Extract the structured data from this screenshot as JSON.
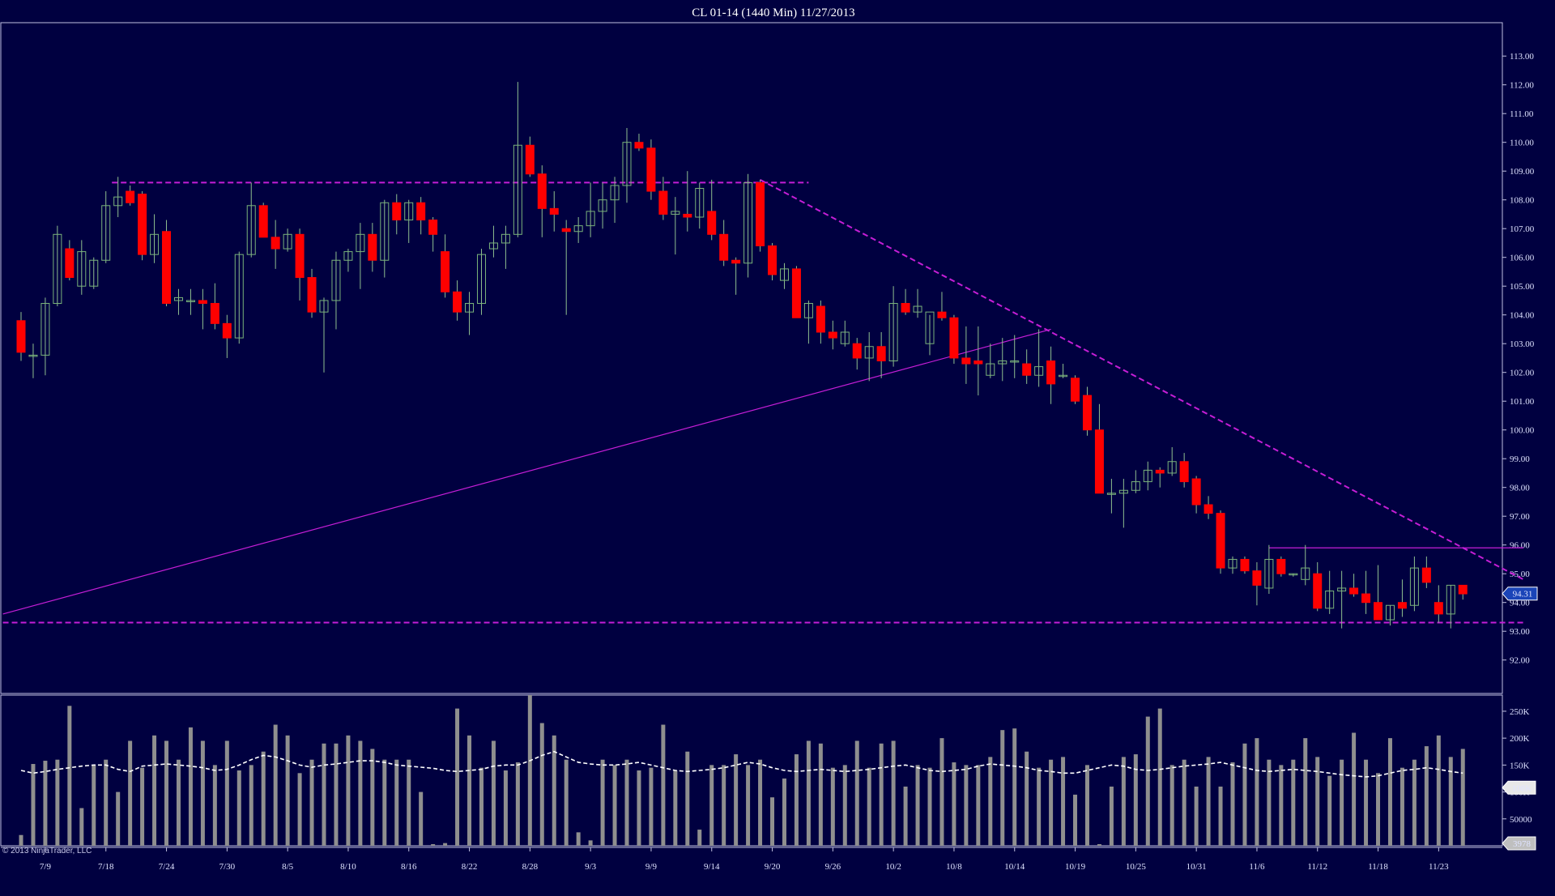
{
  "window": {
    "title": "CL 01-14 (1440 Min)  11/27/2013",
    "copyright": "© 2013 NinjaTrader, LLC"
  },
  "colors": {
    "background": "#000040",
    "up_candle": "#7ab37a",
    "down_candle": "#ff0000",
    "wick": "#8fbf8f",
    "trendline": "#c51ed6",
    "volume_bar": "#8f8f8f",
    "volume_ma": "#ffffff",
    "frame": "#c0c0e0",
    "last_price_marker": "#1a44b8"
  },
  "chart_data": [
    {
      "type": "candlestick",
      "panel": "price",
      "title": "CL 01-14 (1440 Min)  11/27/2013",
      "ylim": [
        91.4,
        113.4
      ],
      "y_ticks": [
        "113.00",
        "112.00",
        "111.00",
        "110.00",
        "109.00",
        "108.00",
        "107.00",
        "106.00",
        "105.00",
        "104.00",
        "103.00",
        "102.00",
        "101.00",
        "100.00",
        "99.00",
        "98.00",
        "97.00",
        "96.00",
        "95.00",
        "94.00",
        "93.00",
        "92.00"
      ],
      "x_tick_labels": [
        {
          "label": "7/9",
          "index": 1
        },
        {
          "label": "7/18",
          "index": 6
        },
        {
          "label": "7/24",
          "index": 11
        },
        {
          "label": "7/30",
          "index": 16
        },
        {
          "label": "8/5",
          "index": 21
        },
        {
          "label": "8/10",
          "index": 26
        },
        {
          "label": "8/16",
          "index": 31
        },
        {
          "label": "8/22",
          "index": 36
        },
        {
          "label": "8/28",
          "index": 41
        },
        {
          "label": "9/3",
          "index": 46
        },
        {
          "label": "9/9",
          "index": 51
        },
        {
          "label": "9/14",
          "index": 56
        },
        {
          "label": "9/20",
          "index": 61
        },
        {
          "label": "9/26",
          "index": 66
        },
        {
          "label": "10/2",
          "index": 71
        },
        {
          "label": "10/8",
          "index": 76
        },
        {
          "label": "10/14",
          "index": 81
        },
        {
          "label": "10/19",
          "index": 86
        },
        {
          "label": "10/25",
          "index": 91
        },
        {
          "label": "10/31",
          "index": 96
        },
        {
          "label": "11/6",
          "index": 101
        },
        {
          "label": "11/12",
          "index": 106
        },
        {
          "label": "11/18",
          "index": 111
        },
        {
          "label": "11/23",
          "index": 116
        }
      ],
      "last_price": "94.31",
      "last_price_value": 94.31,
      "candles": [
        [
          103.8,
          104.1,
          102.4,
          102.7
        ],
        [
          102.6,
          103.0,
          101.8,
          102.6
        ],
        [
          102.6,
          104.6,
          101.9,
          104.4
        ],
        [
          104.4,
          107.1,
          104.3,
          106.8
        ],
        [
          106.3,
          106.6,
          105.2,
          105.3
        ],
        [
          105.0,
          106.6,
          104.7,
          106.2
        ],
        [
          105.0,
          106.0,
          104.9,
          105.9
        ],
        [
          105.9,
          108.3,
          105.8,
          107.8
        ],
        [
          107.8,
          108.8,
          107.4,
          108.1
        ],
        [
          108.3,
          108.5,
          107.8,
          107.9
        ],
        [
          108.2,
          108.3,
          105.9,
          106.1
        ],
        [
          106.1,
          107.5,
          105.8,
          106.8
        ],
        [
          106.9,
          107.3,
          104.3,
          104.4
        ],
        [
          104.5,
          104.9,
          104.0,
          104.6
        ],
        [
          104.5,
          104.9,
          104.0,
          104.5
        ],
        [
          104.5,
          104.9,
          103.5,
          104.4
        ],
        [
          104.4,
          105.1,
          103.5,
          103.7
        ],
        [
          103.7,
          104.0,
          102.5,
          103.2
        ],
        [
          103.2,
          106.2,
          103.0,
          106.1
        ],
        [
          106.1,
          108.6,
          106.0,
          107.8
        ],
        [
          107.8,
          107.9,
          106.7,
          106.7
        ],
        [
          106.7,
          107.3,
          105.6,
          106.3
        ],
        [
          106.3,
          107.0,
          106.2,
          106.8
        ],
        [
          106.8,
          107.0,
          104.5,
          105.3
        ],
        [
          105.3,
          105.6,
          103.9,
          104.1
        ],
        [
          104.1,
          104.6,
          102.0,
          104.5
        ],
        [
          104.5,
          106.2,
          103.5,
          105.9
        ],
        [
          105.9,
          106.3,
          105.5,
          106.2
        ],
        [
          106.2,
          107.2,
          104.9,
          106.8
        ],
        [
          106.8,
          107.2,
          105.5,
          105.9
        ],
        [
          105.9,
          108.0,
          105.3,
          107.9
        ],
        [
          107.9,
          108.2,
          106.8,
          107.3
        ],
        [
          107.3,
          108.0,
          106.5,
          107.9
        ],
        [
          107.9,
          108.1,
          106.8,
          107.3
        ],
        [
          107.3,
          107.4,
          106.2,
          106.8
        ],
        [
          106.2,
          106.8,
          104.6,
          104.8
        ],
        [
          104.8,
          105.2,
          103.8,
          104.1
        ],
        [
          104.1,
          104.8,
          103.3,
          104.4
        ],
        [
          104.4,
          106.3,
          104.0,
          106.1
        ],
        [
          106.3,
          107.1,
          106.0,
          106.5
        ],
        [
          106.5,
          107.1,
          105.6,
          106.8
        ],
        [
          106.8,
          112.1,
          106.7,
          109.9
        ],
        [
          109.9,
          110.2,
          108.8,
          108.9
        ],
        [
          108.9,
          109.2,
          106.7,
          107.7
        ],
        [
          107.7,
          108.3,
          106.9,
          107.5
        ],
        [
          107.0,
          107.3,
          104.0,
          106.9
        ],
        [
          106.9,
          107.4,
          106.5,
          107.1
        ],
        [
          107.1,
          108.6,
          106.7,
          107.6
        ],
        [
          107.6,
          108.6,
          107.0,
          108.0
        ],
        [
          108.0,
          108.8,
          107.2,
          108.5
        ],
        [
          108.5,
          110.5,
          107.9,
          110.0
        ],
        [
          110.0,
          110.3,
          109.7,
          109.8
        ],
        [
          109.8,
          110.1,
          108.0,
          108.3
        ],
        [
          108.3,
          108.8,
          107.3,
          107.5
        ],
        [
          107.5,
          108.1,
          106.1,
          107.6
        ],
        [
          107.5,
          109.0,
          106.9,
          107.4
        ],
        [
          107.4,
          108.6,
          107.0,
          108.4
        ],
        [
          107.6,
          108.7,
          106.6,
          106.8
        ],
        [
          106.8,
          107.3,
          105.7,
          105.9
        ],
        [
          105.9,
          106.0,
          104.7,
          105.8
        ],
        [
          105.8,
          108.9,
          105.3,
          108.6
        ],
        [
          108.6,
          108.7,
          106.2,
          106.4
        ],
        [
          106.4,
          106.5,
          105.2,
          105.4
        ],
        [
          105.2,
          105.8,
          104.9,
          105.6
        ],
        [
          105.6,
          105.7,
          103.9,
          103.9
        ],
        [
          103.9,
          104.5,
          103.0,
          104.4
        ],
        [
          104.3,
          104.5,
          103.0,
          103.4
        ],
        [
          103.4,
          103.8,
          102.8,
          103.2
        ],
        [
          103.0,
          103.8,
          102.9,
          103.4
        ],
        [
          103.0,
          103.2,
          102.1,
          102.5
        ],
        [
          102.5,
          103.4,
          101.7,
          102.9
        ],
        [
          102.9,
          103.4,
          101.8,
          102.4
        ],
        [
          102.4,
          105.0,
          102.2,
          104.4
        ],
        [
          104.4,
          104.9,
          104.0,
          104.1
        ],
        [
          104.1,
          104.9,
          103.9,
          104.3
        ],
        [
          103.0,
          104.0,
          102.6,
          104.1
        ],
        [
          104.1,
          104.8,
          103.8,
          103.9
        ],
        [
          103.9,
          104.0,
          102.3,
          102.5
        ],
        [
          102.5,
          103.6,
          101.6,
          102.3
        ],
        [
          102.4,
          103.6,
          101.2,
          102.3
        ],
        [
          101.9,
          103.0,
          101.8,
          102.3
        ],
        [
          102.3,
          103.2,
          101.7,
          102.4
        ],
        [
          102.4,
          103.3,
          101.8,
          102.4
        ],
        [
          102.3,
          102.8,
          101.6,
          101.9
        ],
        [
          101.9,
          103.5,
          101.5,
          102.2
        ],
        [
          102.4,
          102.9,
          100.9,
          101.6
        ],
        [
          101.9,
          102.3,
          101.8,
          101.9
        ],
        [
          101.8,
          101.9,
          100.9,
          101.0
        ],
        [
          101.2,
          101.5,
          99.8,
          100.0
        ],
        [
          100.0,
          100.9,
          97.8,
          97.8
        ],
        [
          97.8,
          98.3,
          97.1,
          97.8
        ],
        [
          97.8,
          98.3,
          96.6,
          97.9
        ],
        [
          97.9,
          98.6,
          97.8,
          98.2
        ],
        [
          98.2,
          98.9,
          97.9,
          98.6
        ],
        [
          98.6,
          98.7,
          98.0,
          98.5
        ],
        [
          98.5,
          99.4,
          98.4,
          98.9
        ],
        [
          98.9,
          99.2,
          98.0,
          98.2
        ],
        [
          98.3,
          98.4,
          97.1,
          97.4
        ],
        [
          97.4,
          97.7,
          96.9,
          97.1
        ],
        [
          97.1,
          97.2,
          95.0,
          95.2
        ],
        [
          95.2,
          95.6,
          95.0,
          95.5
        ],
        [
          95.5,
          95.6,
          95.0,
          95.1
        ],
        [
          95.1,
          95.4,
          93.9,
          94.6
        ],
        [
          94.5,
          96.0,
          94.3,
          95.5
        ],
        [
          95.5,
          95.6,
          94.9,
          95.0
        ],
        [
          95.0,
          95.0,
          94.9,
          95.0
        ],
        [
          94.8,
          96.0,
          94.6,
          95.2
        ],
        [
          95.0,
          95.4,
          93.7,
          93.8
        ],
        [
          93.8,
          95.1,
          93.6,
          94.4
        ],
        [
          94.4,
          95.1,
          93.1,
          94.5
        ],
        [
          94.5,
          95.0,
          94.2,
          94.3
        ],
        [
          94.3,
          95.1,
          93.6,
          94.0
        ],
        [
          94.0,
          95.3,
          93.5,
          93.4
        ],
        [
          93.4,
          93.9,
          93.2,
          93.9
        ],
        [
          94.0,
          94.8,
          93.5,
          93.8
        ],
        [
          93.9,
          95.6,
          93.7,
          95.2
        ],
        [
          95.2,
          95.6,
          94.5,
          94.7
        ],
        [
          94.0,
          94.6,
          93.3,
          93.6
        ],
        [
          93.6,
          94.6,
          93.1,
          94.6
        ],
        [
          94.6,
          94.6,
          94.1,
          94.3
        ]
      ],
      "trendlines": [
        {
          "style": "dashed",
          "x": [
            7.5,
            65
          ],
          "y": [
            108.6,
            108.6
          ]
        },
        {
          "style": "dashed",
          "x": [
            -1.5,
            124
          ],
          "y": [
            93.3,
            93.3
          ]
        },
        {
          "style": "dashed",
          "x": [
            61,
            124
          ],
          "y": [
            108.7,
            94.8
          ]
        },
        {
          "style": "solid",
          "x": [
            -1.5,
            85
          ],
          "y": [
            93.6,
            103.5
          ]
        },
        {
          "style": "solid",
          "x": [
            103,
            124
          ],
          "y": [
            95.9,
            95.9
          ]
        }
      ]
    },
    {
      "type": "bar",
      "panel": "volume",
      "y_ticks": [
        "250K",
        "200K",
        "150K",
        "100K",
        "50000"
      ],
      "ylim": [
        0,
        280
      ],
      "unit": "K",
      "last_volume": "108K",
      "last_volume_value": 108,
      "last_bar_label": "3978",
      "volumes": [
        20,
        152,
        158,
        160,
        260,
        70,
        150,
        160,
        100,
        195,
        145,
        205,
        195,
        160,
        220,
        195,
        150,
        195,
        140,
        150,
        175,
        225,
        205,
        135,
        160,
        190,
        190,
        205,
        195,
        180,
        160,
        160,
        160,
        100,
        3,
        5,
        255,
        205,
        145,
        195,
        140,
        155,
        280,
        228,
        205,
        160,
        25,
        10,
        160,
        150,
        160,
        140,
        145,
        225,
        140,
        175,
        30,
        150,
        150,
        170,
        150,
        160,
        90,
        125,
        170,
        195,
        190,
        145,
        150,
        195,
        145,
        190,
        195,
        110,
        150,
        145,
        200,
        155,
        150,
        150,
        165,
        215,
        218,
        175,
        145,
        160,
        165,
        95,
        150,
        3,
        110,
        165,
        170,
        240,
        255,
        150,
        160,
        110,
        165,
        110,
        155,
        190,
        200,
        160,
        150,
        160,
        200,
        165,
        130,
        160,
        210,
        160,
        135,
        200,
        145,
        160,
        185,
        205,
        165,
        180,
        0,
        0,
        0,
        0,
        0,
        0,
        0,
        0,
        0,
        0,
        0,
        0,
        0
      ],
      "moving_average": [
        140,
        135,
        138,
        142,
        145,
        148,
        150,
        150,
        142,
        138,
        148,
        150,
        152,
        150,
        148,
        145,
        140,
        142,
        150,
        160,
        168,
        165,
        158,
        150,
        146,
        150,
        152,
        155,
        158,
        158,
        155,
        150,
        148,
        146,
        144,
        140,
        138,
        140,
        142,
        148,
        150,
        150,
        158,
        168,
        175,
        165,
        155,
        152,
        150,
        150,
        152,
        155,
        150,
        145,
        140,
        138,
        140,
        142,
        145,
        150,
        155,
        152,
        145,
        140,
        138,
        140,
        142,
        140,
        138,
        140,
        142,
        145,
        148,
        150,
        145,
        140,
        138,
        140,
        142,
        148,
        152,
        150,
        148,
        145,
        140,
        138,
        135,
        135,
        140,
        145,
        150,
        148,
        142,
        140,
        142,
        145,
        148,
        150,
        152,
        155,
        150,
        145,
        140,
        138,
        140,
        142,
        140,
        138,
        135,
        132,
        130,
        128,
        130,
        135,
        140,
        142,
        145,
        142,
        138,
        135,
        125,
        120,
        118,
        115,
        112,
        110,
        108
      ]
    }
  ]
}
